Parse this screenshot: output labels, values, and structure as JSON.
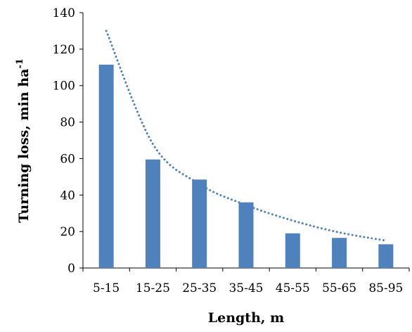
{
  "chart_data": {
    "type": "bar",
    "categories": [
      "5-15",
      "15-25",
      "25-35",
      "35-45",
      "45-55",
      "55-65",
      "85-95"
    ],
    "series": [
      {
        "values": [
          111.5,
          59.5,
          48.5,
          36,
          19,
          16.5,
          13
        ],
        "color": "#4F81BD"
      }
    ],
    "trendline": {
      "style": "dotted",
      "color": "#4F81BD",
      "points": [
        130,
        68,
        46,
        34.5,
        26,
        19.5,
        15
      ]
    },
    "xlabel": "Length, m",
    "ylabel": "Turning loss, min ha",
    "ylabel_superscript": "-1",
    "ylim": [
      0,
      140
    ],
    "yticks": [
      0,
      20,
      40,
      60,
      80,
      100,
      120,
      140
    ],
    "grid": false,
    "legend": "none"
  }
}
